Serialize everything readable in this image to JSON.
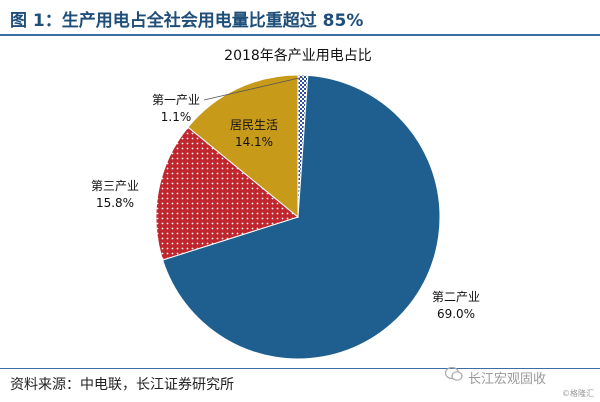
{
  "figure_title": "图 1：生产用电占全社会用电量比重超过 85%",
  "source": "资料来源：中电联，长江证券研究所",
  "brand": "长江宏观固收",
  "watermark": "©格隆汇",
  "colors": {
    "title": "#1f4e79",
    "rule": "#3a6ea5",
    "secondary": "#1f5f8f",
    "tertiary": "#c0262d",
    "residential": "#c79a1a",
    "primary": "#2e4f9e"
  },
  "chart_data": {
    "type": "pie",
    "title": "2018年各产业用电占比",
    "slices": [
      {
        "label": "第一产业",
        "value": 1.1,
        "value_label": "1.1%",
        "pattern": "checker",
        "color": "#2e4f9e"
      },
      {
        "label": "第二产业",
        "value": 69.0,
        "value_label": "69.0%",
        "pattern": "solid",
        "color": "#1f5f8f"
      },
      {
        "label": "第三产业",
        "value": 15.8,
        "value_label": "15.8%",
        "pattern": "dots",
        "color": "#c0262d"
      },
      {
        "label": "居民生活",
        "value": 14.1,
        "value_label": "14.1%",
        "pattern": "solid",
        "color": "#c79a1a"
      }
    ]
  }
}
